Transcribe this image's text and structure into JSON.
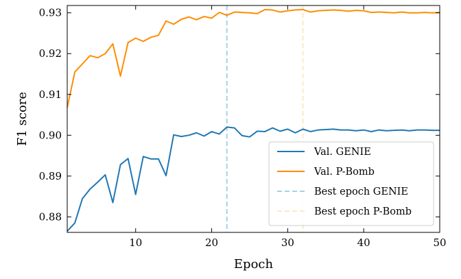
{
  "chart_data": {
    "type": "line",
    "xlabel": "Epoch",
    "ylabel": "F1 score",
    "xlim": [
      1,
      50
    ],
    "ylim": [
      0.8762,
      0.9318
    ],
    "x_ticks": [
      10,
      20,
      30,
      40,
      50
    ],
    "y_ticks": [
      0.88,
      0.89,
      0.9,
      0.91,
      0.92,
      0.93
    ],
    "y_tick_labels": [
      "0.88",
      "0.89",
      "0.90",
      "0.91",
      "0.92",
      "0.93"
    ],
    "x_tick_labels": [
      "10",
      "20",
      "30",
      "40",
      "50"
    ],
    "grid": false,
    "legend_position": "bottom-right",
    "x": [
      1,
      2,
      3,
      4,
      5,
      6,
      7,
      8,
      9,
      10,
      11,
      12,
      13,
      14,
      15,
      16,
      17,
      18,
      19,
      20,
      21,
      22,
      23,
      24,
      25,
      26,
      27,
      28,
      29,
      30,
      31,
      32,
      33,
      34,
      35,
      36,
      37,
      38,
      39,
      40,
      41,
      42,
      43,
      44,
      45,
      46,
      47,
      48,
      49,
      50
    ],
    "series": [
      {
        "name": "Val. GENIE",
        "color": "#1f77b4",
        "style": "solid",
        "values": [
          0.8765,
          0.8785,
          0.8845,
          0.8868,
          0.8885,
          0.8903,
          0.8835,
          0.8928,
          0.8943,
          0.8855,
          0.8948,
          0.8942,
          0.8942,
          0.8901,
          0.9001,
          0.8997,
          0.9,
          0.9006,
          0.8998,
          0.9009,
          0.9003,
          0.902,
          0.9018,
          0.8999,
          0.8996,
          0.901,
          0.9009,
          0.9018,
          0.901,
          0.9015,
          0.9006,
          0.9015,
          0.9009,
          0.9013,
          0.9014,
          0.9015,
          0.9013,
          0.9013,
          0.9011,
          0.9013,
          0.9009,
          0.9013,
          0.9011,
          0.9012,
          0.9013,
          0.9011,
          0.9013,
          0.9013,
          0.9012,
          0.9012
        ]
      },
      {
        "name": "Val. P-Bomb",
        "color": "#ff8c00",
        "style": "solid",
        "values": [
          0.9068,
          0.9155,
          0.9175,
          0.9195,
          0.919,
          0.92,
          0.9224,
          0.9145,
          0.9227,
          0.9238,
          0.923,
          0.924,
          0.9245,
          0.928,
          0.9272,
          0.9284,
          0.929,
          0.9283,
          0.9291,
          0.9287,
          0.9301,
          0.9294,
          0.9302,
          0.9301,
          0.93,
          0.9298,
          0.9308,
          0.9307,
          0.9302,
          0.9305,
          0.9307,
          0.9308,
          0.9302,
          0.9305,
          0.9306,
          0.9307,
          0.9306,
          0.9304,
          0.9306,
          0.9305,
          0.9301,
          0.9302,
          0.9301,
          0.93,
          0.9302,
          0.93,
          0.93,
          0.9301,
          0.93,
          0.9301
        ]
      }
    ],
    "vlines": [
      {
        "name": "Best epoch GENIE",
        "x": 22,
        "color": "#a6d1e6",
        "style": "dashed"
      },
      {
        "name": "Best epoch P-Bomb",
        "x": 32,
        "color": "#fde9c9",
        "style": "dashed"
      }
    ]
  }
}
